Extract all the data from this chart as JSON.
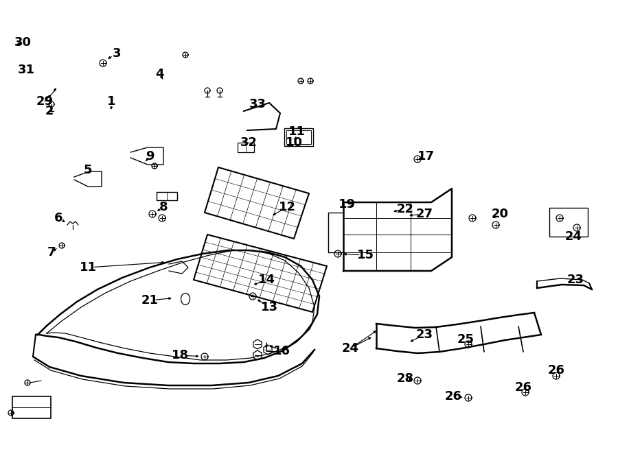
{
  "bg_color": "#ffffff",
  "line_color": "#000000",
  "label_fontsize": 13,
  "fig_width": 9.0,
  "fig_height": 6.62,
  "fig_dpi": 100,
  "labels": [
    [
      1,
      162,
      148,
      162,
      168
    ],
    [
      2,
      72,
      162,
      72,
      152
    ],
    [
      3,
      170,
      78,
      150,
      90
    ],
    [
      4,
      232,
      108,
      242,
      122
    ],
    [
      5,
      128,
      248,
      128,
      258
    ],
    [
      6,
      85,
      318,
      102,
      328
    ],
    [
      7,
      75,
      368,
      88,
      358
    ],
    [
      8,
      238,
      302,
      222,
      312
    ],
    [
      9,
      218,
      228,
      210,
      238
    ],
    [
      10,
      428,
      208,
      432,
      196
    ],
    [
      11,
      128,
      390,
      248,
      382
    ],
    [
      12,
      418,
      302,
      390,
      318
    ],
    [
      13,
      392,
      448,
      368,
      432
    ],
    [
      14,
      388,
      408,
      362,
      418
    ],
    [
      15,
      532,
      372,
      492,
      370
    ],
    [
      16,
      410,
      512,
      385,
      500
    ],
    [
      17,
      620,
      228,
      605,
      232
    ],
    [
      18,
      262,
      518,
      298,
      520
    ],
    [
      19,
      505,
      298,
      522,
      305
    ],
    [
      20,
      728,
      312,
      710,
      322
    ],
    [
      21,
      218,
      438,
      258,
      434
    ],
    [
      22,
      590,
      305,
      565,
      310
    ],
    [
      23,
      618,
      488,
      590,
      502
    ],
    [
      24,
      510,
      508,
      548,
      488
    ],
    [
      25,
      678,
      495,
      682,
      502
    ],
    [
      26,
      660,
      578,
      682,
      580
    ],
    [
      27,
      618,
      312,
      588,
      315
    ],
    [
      28,
      590,
      552,
      608,
      555
    ],
    [
      29,
      65,
      148,
      80,
      132
    ],
    [
      30,
      33,
      62,
      20,
      66
    ],
    [
      31,
      38,
      102,
      45,
      105
    ],
    [
      32,
      362,
      208,
      355,
      215
    ],
    [
      33,
      375,
      152,
      375,
      160
    ]
  ],
  "extra_labels": [
    [
      26,
      762,
      565,
      765,
      572
    ],
    [
      26,
      810,
      540,
      810,
      548
    ],
    [
      23,
      838,
      408,
      820,
      415
    ],
    [
      24,
      835,
      345,
      828,
      348
    ],
    [
      11,
      432,
      192,
      432,
      200
    ]
  ]
}
